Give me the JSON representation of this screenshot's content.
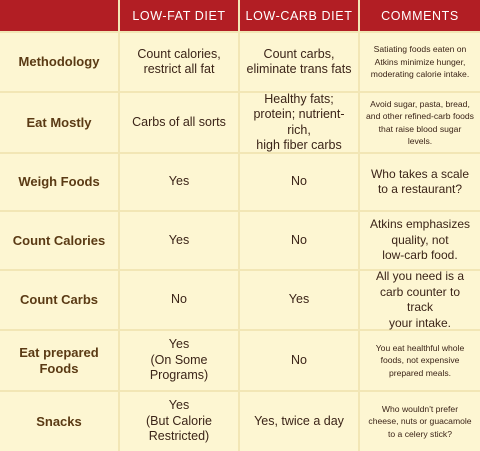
{
  "headers": [
    "",
    "LOW-FAT DIET",
    "LOW-CARB DIET",
    "COMMENTS"
  ],
  "rows": [
    {
      "label": "Methodology",
      "lowfat": "Count calories,\nrestrict all fat",
      "lowcarb": "Count carbs,\neliminate trans fats",
      "comment": "Satiating foods eaten on\nAtkins minimize hunger,\nmoderating calorie intake.",
      "comment_style": "small"
    },
    {
      "label": "Eat Mostly",
      "lowfat": "Carbs of all sorts",
      "lowcarb": "Healthy fats;\nprotein; nutrient-rich,\nhigh fiber carbs",
      "comment": "Avoid sugar, pasta, bread,\nand other refined-carb foods\nthat raise blood sugar levels.",
      "comment_style": "small"
    },
    {
      "label": "Weigh Foods",
      "lowfat": "Yes",
      "lowcarb": "No",
      "comment": "Who takes a scale\nto a restaurant?",
      "comment_style": "large"
    },
    {
      "label": "Count Calories",
      "lowfat": "Yes",
      "lowcarb": "No",
      "comment": "Atkins emphasizes\nquality, not\nlow-carb food.",
      "comment_style": "large"
    },
    {
      "label": "Count Carbs",
      "lowfat": "No",
      "lowcarb": "Yes",
      "comment": "All you need is a\ncarb counter to track\nyour intake.",
      "comment_style": "large"
    },
    {
      "label": "Eat prepared\nFoods",
      "lowfat": "Yes\n(On Some Programs)",
      "lowcarb": "No",
      "comment": "You eat healthful whole\nfoods, not expensive\nprepared meals.",
      "comment_style": "small"
    },
    {
      "label": "Snacks",
      "lowfat": "Yes\n(But Calorie Restricted)",
      "lowcarb": "Yes, twice a day",
      "comment": "Who wouldn't prefer\ncheese, nuts or guacamole\nto a celery stick?",
      "comment_style": "small"
    }
  ],
  "colors": {
    "header_bg": "#b21e24",
    "cell_bg": "#fdf6d2",
    "label_text": "#5a3a14",
    "divider": "#c79c57"
  }
}
